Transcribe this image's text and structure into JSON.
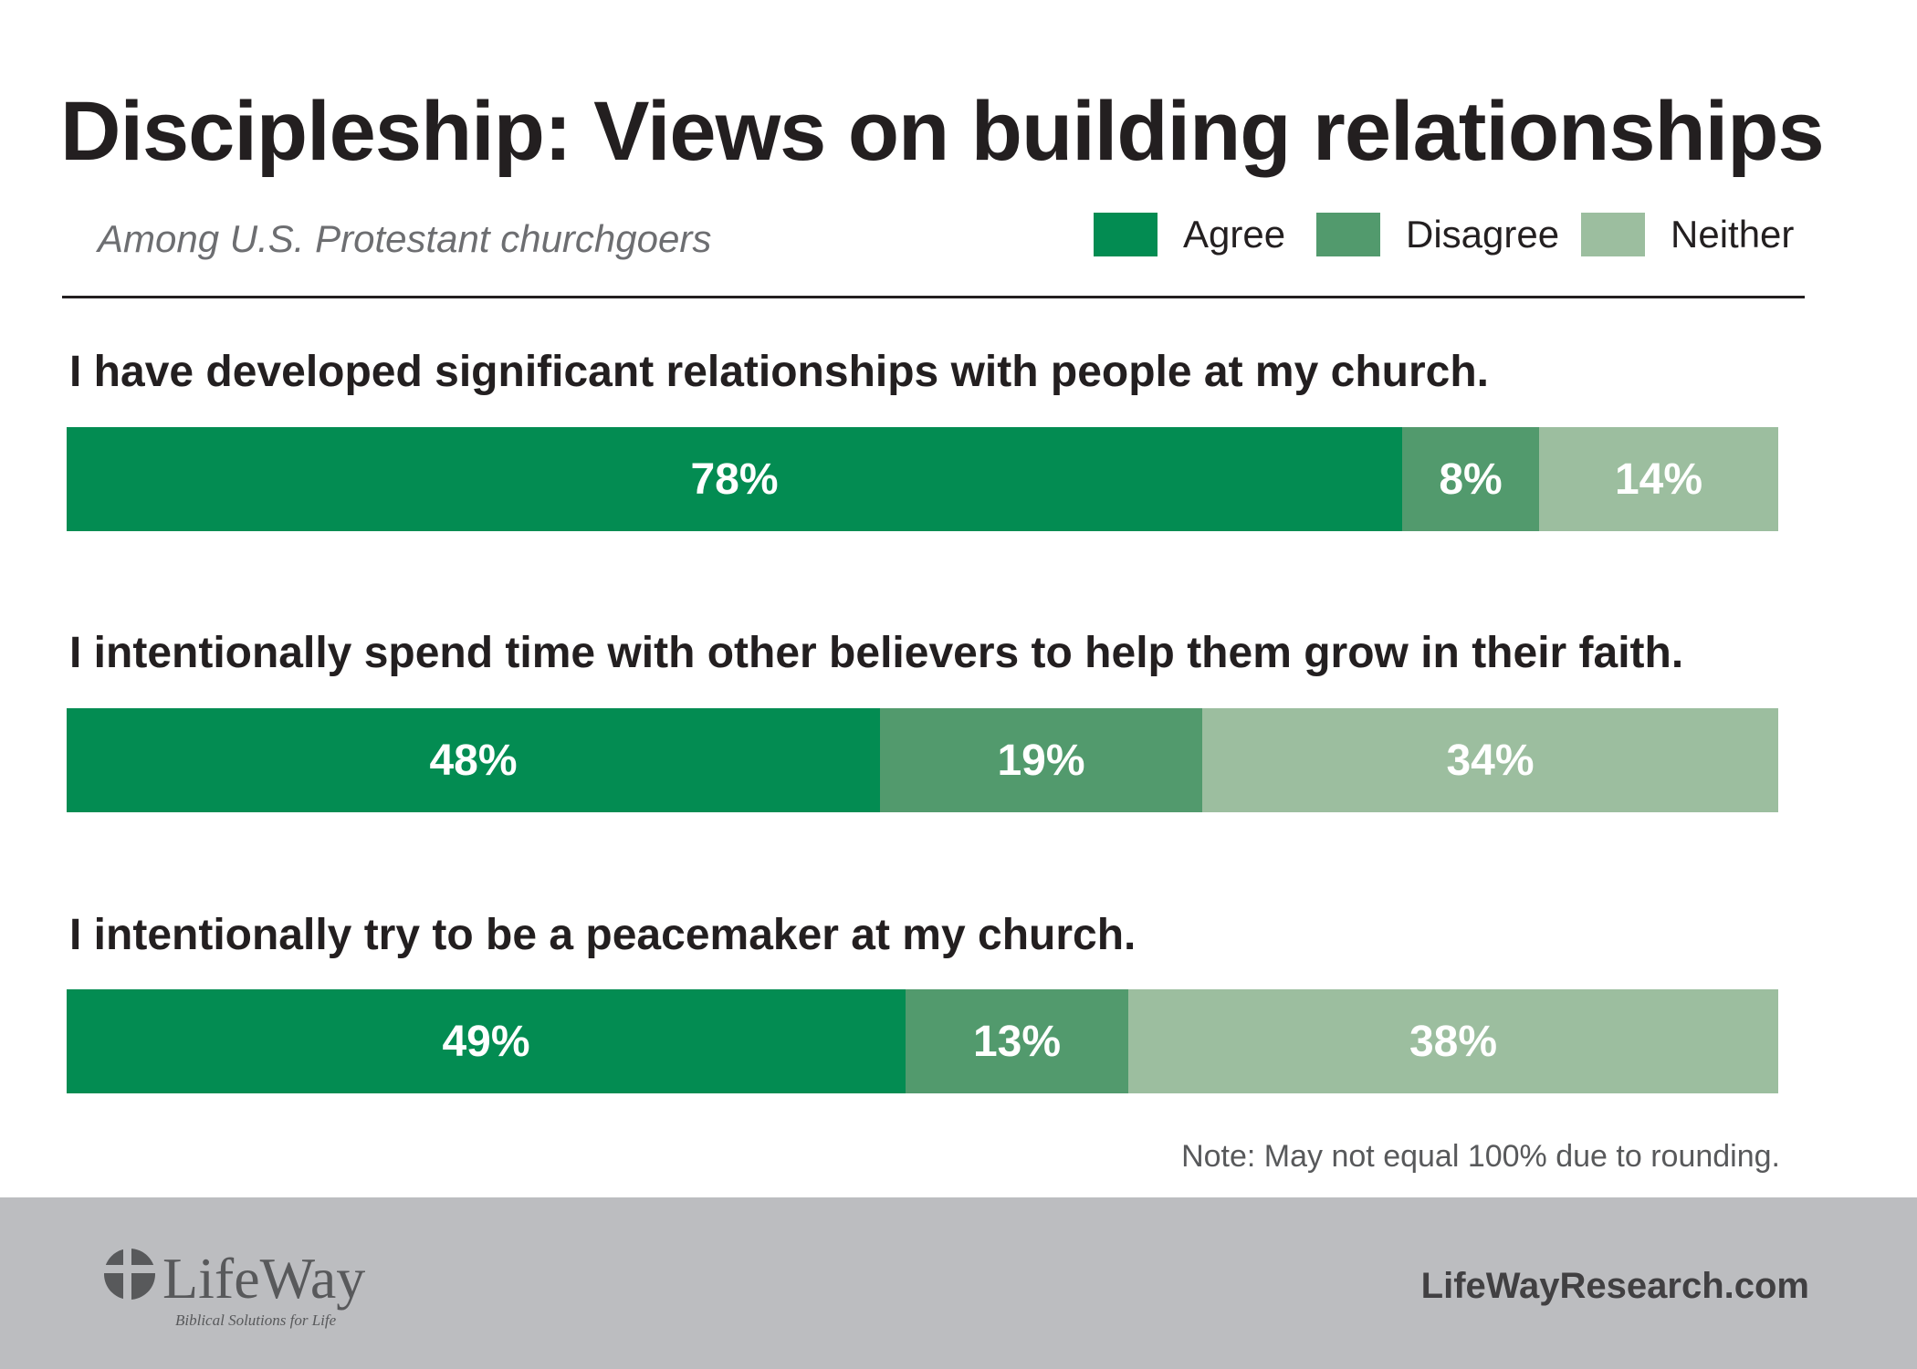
{
  "title": "Discipleship: Views on building relationships",
  "subtitle": "Among U.S. Protestant churchgoers",
  "colors": {
    "agree": "#038c52",
    "disagree": "#529a6d",
    "neither": "#9cbe9f",
    "footer": "#bcbdc0",
    "text": "#231f20"
  },
  "chart_data": {
    "type": "bar",
    "orientation": "horizontal-stacked-100",
    "title": "Discipleship: Views on building relationships",
    "subtitle": "Among U.S. Protestant churchgoers",
    "legend": [
      "Agree",
      "Disagree",
      "Neither"
    ],
    "legend_position": "top-right",
    "categories": [
      "I have developed significant relationships with people at my church.",
      "I intentionally spend time with other believers to help them grow in their faith.",
      "I intentionally try to be a peacemaker at my church."
    ],
    "series": [
      {
        "name": "Agree",
        "values": [
          78,
          48,
          49
        ],
        "labels": [
          "78%",
          "48%",
          "49%"
        ]
      },
      {
        "name": "Disagree",
        "values": [
          8,
          19,
          13
        ],
        "labels": [
          "8%",
          "19%",
          "13%"
        ]
      },
      {
        "name": "Neither",
        "values": [
          14,
          34,
          38
        ],
        "labels": [
          "14%",
          "34%",
          "38%"
        ]
      }
    ],
    "unit": "%",
    "note": "Note: May not equal 100% due to rounding."
  },
  "footer": {
    "logo_text": "LifeWay",
    "logo_tagline": "Biblical Solutions for Life",
    "site": "LifeWayResearch.com"
  }
}
